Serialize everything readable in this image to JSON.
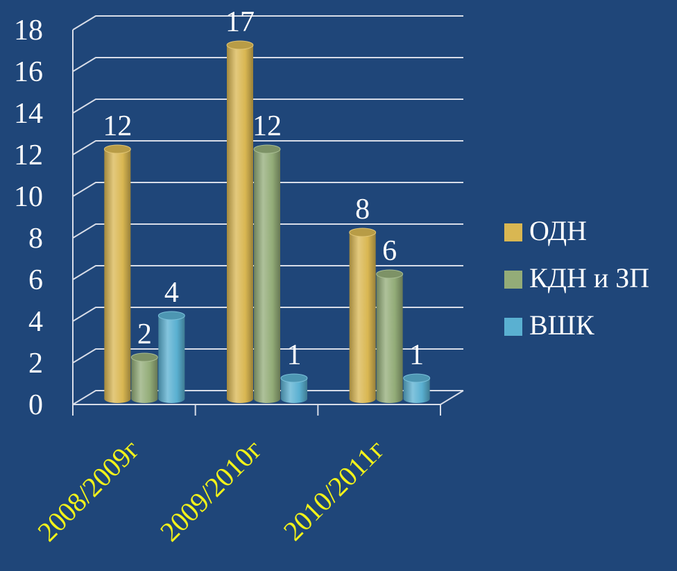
{
  "chart_data": {
    "type": "bar",
    "categories": [
      "2008/2009г",
      "2009/2010г",
      "2010/2011г"
    ],
    "series": [
      {
        "name": "ОДН",
        "values": [
          12,
          17,
          8
        ],
        "color": "#d9b752"
      },
      {
        "name": "КДН и ЗП",
        "values": [
          2,
          12,
          6
        ],
        "color": "#93ac78"
      },
      {
        "name": "ВШК",
        "values": [
          4,
          1,
          1
        ],
        "color": "#5ab0d1"
      }
    ],
    "ylim": [
      0,
      18
    ],
    "yticks": [
      "0",
      "2",
      "4",
      "6",
      "8",
      "10",
      "12",
      "14",
      "16",
      "18"
    ],
    "data_labels": [
      [
        "12",
        "17",
        "8"
      ],
      [
        "2",
        "12",
        "6"
      ],
      [
        "4",
        "1",
        "1"
      ]
    ],
    "grid": true,
    "legend_position": "right",
    "style": "3d-cylinder"
  }
}
